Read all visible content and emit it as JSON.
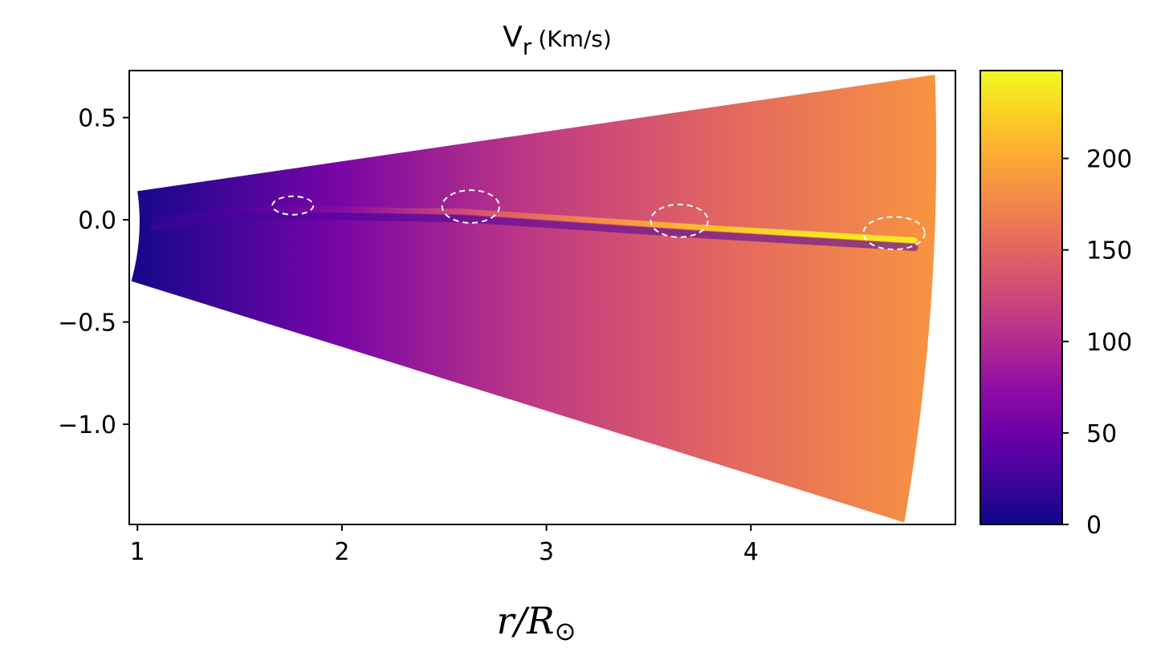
{
  "chart_data": {
    "type": "heatmap",
    "title": "V",
    "title_subscript": "r",
    "title_units": "(Km/s)",
    "xlabel": "r/R",
    "xlabel_symbol": "⊙",
    "ylabel": "",
    "xlim": [
      0.96,
      5.0
    ],
    "ylim": [
      -1.49,
      0.73
    ],
    "xticks": [
      1,
      2,
      3,
      4
    ],
    "xtick_labels": [
      "1",
      "2",
      "3",
      "4"
    ],
    "yticks": [
      0.5,
      0.0,
      -0.5,
      -1.0
    ],
    "ytick_labels": [
      "0.5",
      "0.0",
      "−0.5",
      "−1.0"
    ],
    "grid": false,
    "colormap": "plasma",
    "colorbar": {
      "range": [
        0,
        248
      ],
      "ticks": [
        0,
        50,
        100,
        150,
        200
      ],
      "tick_labels": [
        "0",
        "50",
        "100",
        "150",
        "200"
      ]
    },
    "wedge": {
      "inner_radius": 1.0,
      "outer_radius": 4.9,
      "upper_edge": [
        [
          1.0,
          0.14
        ],
        [
          4.9,
          0.71
        ]
      ],
      "lower_edge": [
        [
          0.97,
          -0.3
        ],
        [
          4.75,
          -1.48
        ]
      ],
      "speed_inner": 5,
      "speed_outer": 185
    },
    "streamer": {
      "points": [
        [
          1.08,
          0.0
        ],
        [
          1.5,
          0.05
        ],
        [
          2.0,
          0.05
        ],
        [
          2.6,
          0.04
        ],
        [
          3.2,
          0.0
        ],
        [
          3.8,
          -0.04
        ],
        [
          4.3,
          -0.07
        ],
        [
          4.8,
          -0.1
        ]
      ],
      "speeds": [
        15,
        35,
        70,
        130,
        175,
        215,
        235,
        240
      ]
    },
    "annotations": [
      {
        "shape": "dashed-ellipse",
        "center": [
          1.76,
          0.07
        ],
        "rx": 0.1,
        "ry": 0.045
      },
      {
        "shape": "dashed-ellipse",
        "center": [
          2.63,
          0.065
        ],
        "rx": 0.14,
        "ry": 0.08
      },
      {
        "shape": "dashed-ellipse",
        "center": [
          3.65,
          -0.005
        ],
        "rx": 0.14,
        "ry": 0.08
      },
      {
        "shape": "dashed-ellipse",
        "center": [
          4.7,
          -0.065
        ],
        "rx": 0.15,
        "ry": 0.08
      }
    ]
  }
}
